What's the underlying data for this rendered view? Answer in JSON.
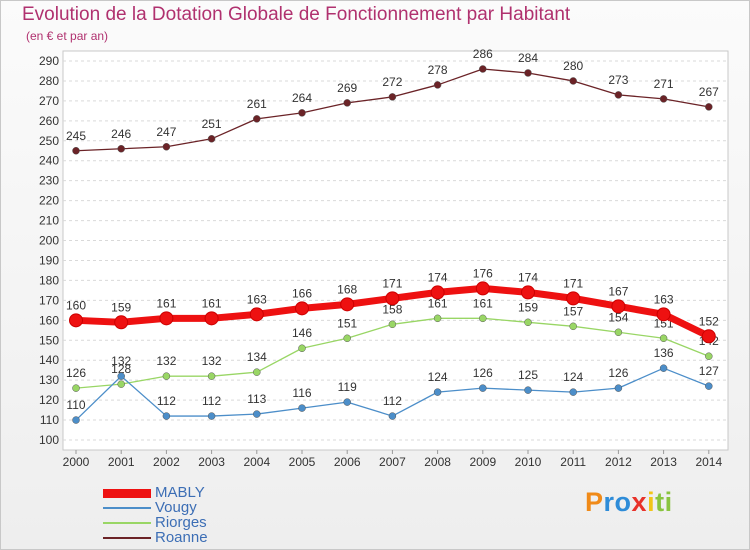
{
  "chart_data": {
    "type": "line",
    "title": "Evolution de la Dotation Globale de Fonctionnement par Habitant",
    "subtitle": "(en € et par an)",
    "categories": [
      "2000",
      "2001",
      "2002",
      "2003",
      "2004",
      "2005",
      "2006",
      "2007",
      "2008",
      "2009",
      "2010",
      "2011",
      "2012",
      "2013",
      "2014"
    ],
    "y_ticks": [
      100,
      110,
      120,
      130,
      140,
      150,
      160,
      170,
      180,
      190,
      200,
      210,
      220,
      230,
      240,
      250,
      260,
      270,
      280,
      290
    ],
    "ylim": [
      100,
      290
    ],
    "grid": "horizontal-dashed",
    "legend_position": "bottom-left",
    "series": [
      {
        "name": "Roanne",
        "color": "#6b2327",
        "values": [
          245,
          246,
          247,
          251,
          261,
          264,
          269,
          272,
          278,
          286,
          284,
          280,
          273,
          271,
          267
        ]
      },
      {
        "name": "Riorges",
        "color": "#99d665",
        "values": [
          126,
          128,
          132,
          132,
          134,
          146,
          151,
          158,
          161,
          161,
          159,
          157,
          154,
          151,
          142
        ]
      },
      {
        "name": "Vougy",
        "color": "#4c8ec9",
        "values": [
          110,
          132,
          112,
          112,
          113,
          116,
          119,
          112,
          124,
          126,
          125,
          124,
          126,
          136,
          127
        ]
      },
      {
        "name": "MABLY",
        "color": "#ee1111",
        "values": [
          160,
          159,
          161,
          161,
          163,
          166,
          168,
          171,
          174,
          176,
          174,
          171,
          167,
          163,
          152
        ]
      }
    ]
  },
  "legend": [
    "MABLY",
    "Vougy",
    "Riorges",
    "Roanne"
  ],
  "logo": {
    "letters": [
      "P",
      "r",
      "o",
      "x",
      "i",
      "t",
      "i"
    ],
    "colors": [
      "#f08a18",
      "#2e8cd8",
      "#2e8cd8",
      "#e8322a",
      "#f2c518",
      "#89c440",
      "#89c440"
    ]
  }
}
